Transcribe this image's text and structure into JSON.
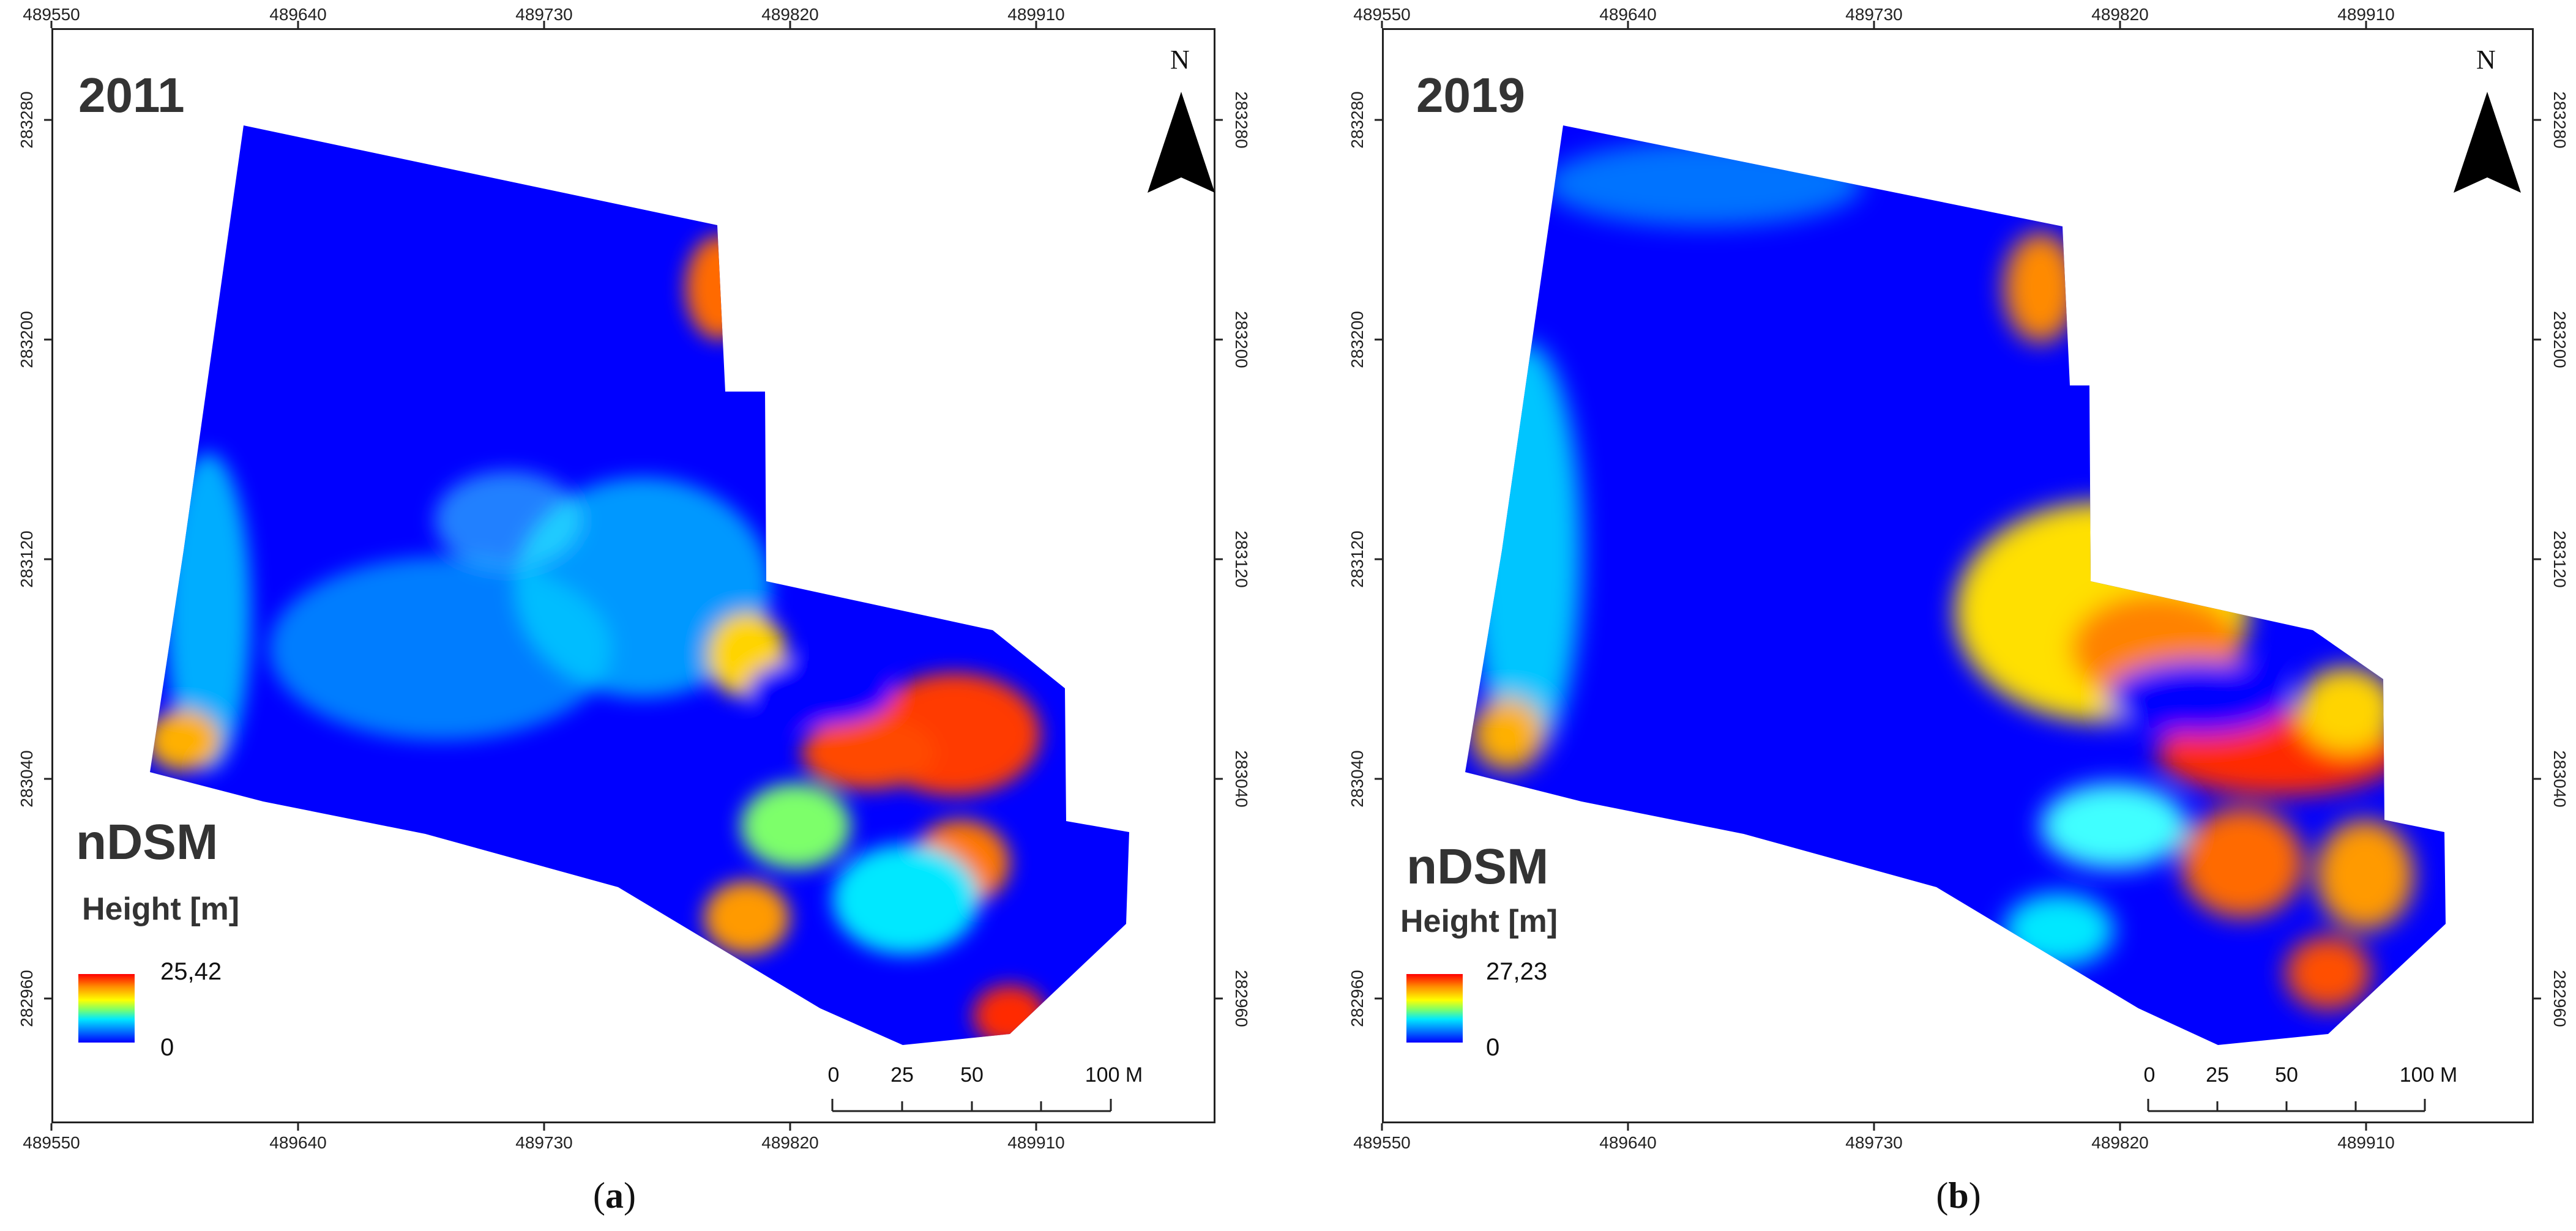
{
  "panels": [
    {
      "year": "2011",
      "legend_title": "nDSM",
      "legend_subtitle": "Height [m]",
      "legend_max": "25,42",
      "legend_min": "0",
      "caption_letter": "a",
      "x_ticks": [
        "489550",
        "489640",
        "489730",
        "489820",
        "489910"
      ],
      "y_ticks": [
        "283280",
        "283200",
        "283120",
        "283040",
        "282960"
      ]
    },
    {
      "year": "2019",
      "legend_title": "nDSM",
      "legend_subtitle": "Height [m]",
      "legend_max": "27,23",
      "legend_min": "0",
      "caption_letter": "b",
      "x_ticks": [
        "489550",
        "489640",
        "489730",
        "489820",
        "489910"
      ],
      "y_ticks": [
        "283280",
        "283200",
        "283120",
        "283040",
        "282960"
      ]
    }
  ],
  "north_label": "N",
  "scale_bar": {
    "labels": [
      "0",
      "25",
      "50",
      "100 M"
    ]
  },
  "colors": {
    "low": "#0000ff",
    "mid": "#00e8ff",
    "high": "#ff0000"
  }
}
